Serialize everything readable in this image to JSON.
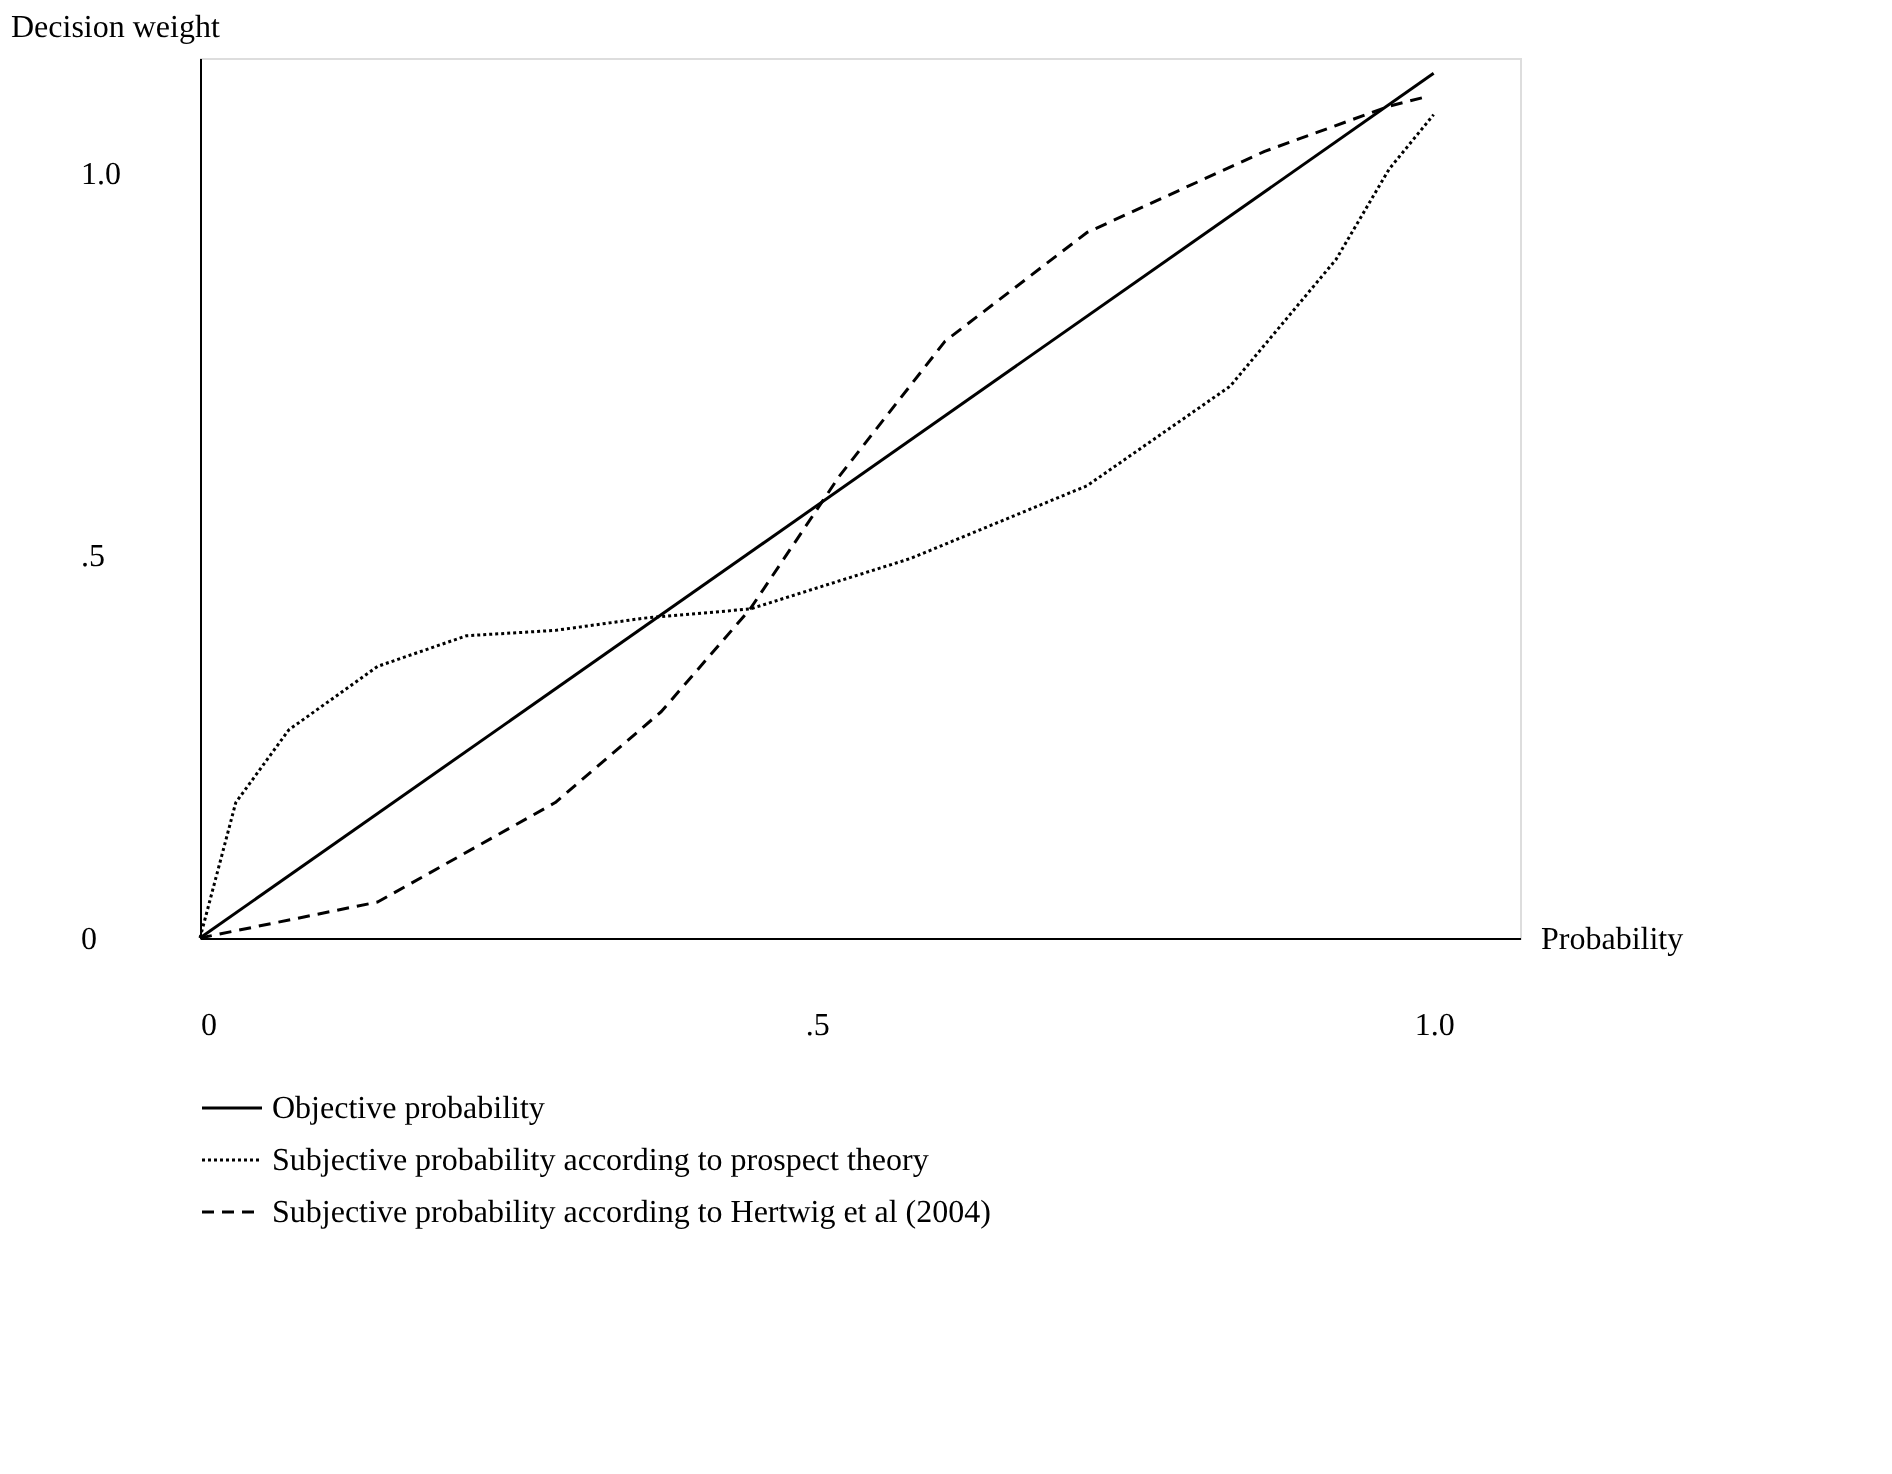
{
  "chart_data": {
    "type": "line",
    "xlabel": "Probability",
    "ylabel": "Decision weight",
    "xlim": [
      0,
      1.07
    ],
    "ylim": [
      0,
      1.15
    ],
    "xticks": [
      0,
      {
        "value": 0.5,
        "label": ".5"
      },
      {
        "value": 1,
        "label": "1.0"
      }
    ],
    "yticks": [
      0,
      {
        "value": 0.5,
        "label": ".5"
      },
      {
        "value": 1,
        "label": "1.0"
      }
    ],
    "grid": false,
    "legend": "bottom",
    "marker": "none",
    "series": [
      {
        "name": "Objective probability",
        "color": "#000000",
        "line_style": "solid",
        "x": [
          0,
          1
        ],
        "values": [
          0,
          1.13
        ]
      },
      {
        "name": "Subjective probability according to prospect theory",
        "color": "#000000",
        "line_style": "dotted",
        "x": [
          0,
          0.029,
          0.072,
          0.144,
          0.216,
          0.288,
          0.36,
          0.446,
          0.576,
          0.719,
          0.835,
          0.921,
          0.964,
          1.0
        ],
        "values": [
          0,
          0.177,
          0.272,
          0.355,
          0.395,
          0.402,
          0.418,
          0.43,
          0.496,
          0.591,
          0.721,
          0.887,
          1.005,
          1.076
        ]
      },
      {
        "name": "Subjective probability according to Hertwig et al (2004)",
        "color": "#000000",
        "line_style": "dashed",
        "x": [
          0,
          0.144,
          0.288,
          0.374,
          0.446,
          0.518,
          0.604,
          0.719,
          0.863,
          0.964,
          0.993
        ],
        "values": [
          0,
          0.047,
          0.177,
          0.296,
          0.43,
          0.603,
          0.78,
          0.922,
          1.028,
          1.087,
          1.099
        ]
      }
    ]
  }
}
